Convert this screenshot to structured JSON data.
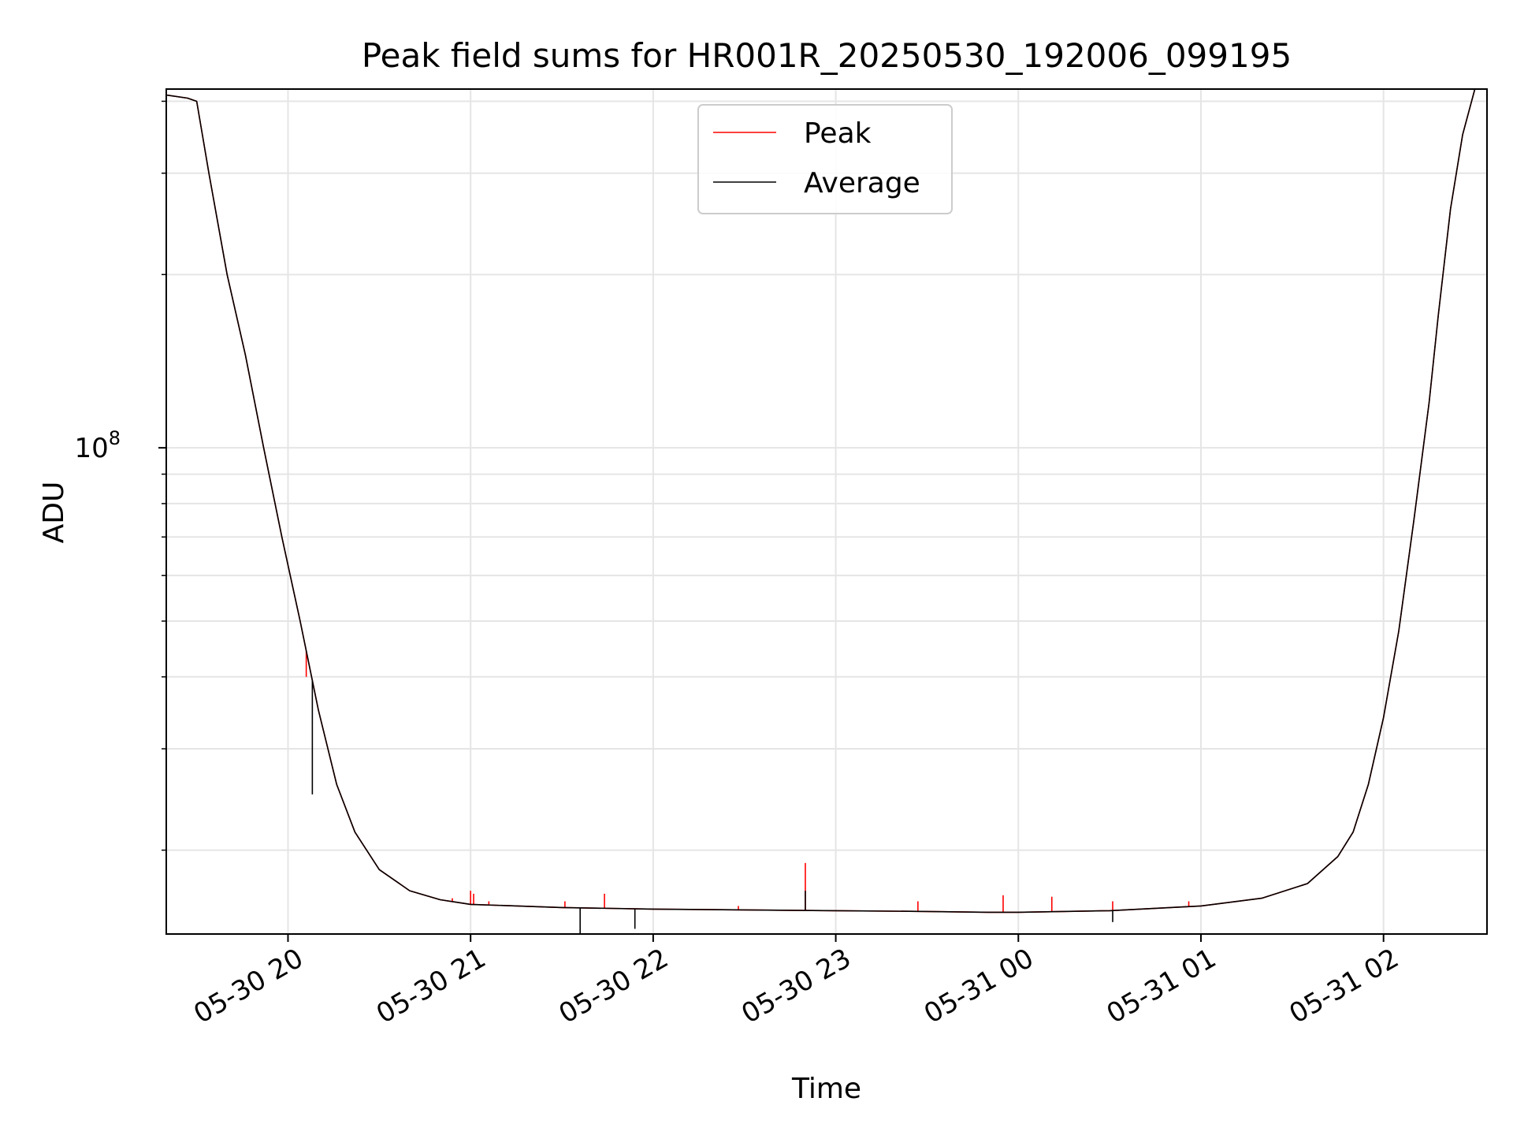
{
  "chart_data": {
    "type": "line",
    "title": "Peak field sums for HR001R_20250530_192006_099195",
    "xlabel": "Time",
    "ylabel": "ADU",
    "yscale": "log",
    "ylim": [
      14300000,
      420000000
    ],
    "xlim": [
      "2025-05-30 19:20",
      "2025-05-31 02:34"
    ],
    "x_ticks": [
      "05-30 20",
      "05-30 21",
      "05-30 22",
      "05-30 23",
      "05-31 00",
      "05-31 01",
      "05-31 02"
    ],
    "y_ticks": [
      {
        "value": 100000000,
        "base": "10",
        "exponent": "8"
      }
    ],
    "y_minor_ticks": [
      20000000,
      30000000,
      40000000,
      50000000,
      60000000,
      70000000,
      80000000,
      90000000,
      200000000,
      300000000,
      400000000
    ],
    "grid": true,
    "legend": "upper center",
    "colors": {
      "Peak": "#ff0000",
      "Average": "#000000"
    },
    "series": [
      {
        "name": "Peak",
        "x": [
          "2025-05-30 19:20",
          "2025-05-30 19:27",
          "2025-05-30 19:30",
          "2025-05-30 19:34",
          "2025-05-30 19:40",
          "2025-05-30 19:46",
          "2025-05-30 19:52",
          "2025-05-30 19:58",
          "2025-05-30 20:04",
          "2025-05-30 20:10",
          "2025-05-30 20:16",
          "2025-05-30 20:22",
          "2025-05-30 20:30",
          "2025-05-30 20:40",
          "2025-05-30 20:50",
          "2025-05-30 21:00",
          "2025-05-30 21:30",
          "2025-05-30 22:00",
          "2025-05-30 22:30",
          "2025-05-30 23:00",
          "2025-05-30 23:30",
          "2025-05-30 23:50",
          "2025-05-31 00:00",
          "2025-05-31 00:30",
          "2025-05-31 01:00",
          "2025-05-31 01:20",
          "2025-05-31 01:35",
          "2025-05-31 01:45",
          "2025-05-31 01:50",
          "2025-05-31 01:55",
          "2025-05-31 02:00",
          "2025-05-31 02:05",
          "2025-05-31 02:10",
          "2025-05-31 02:15",
          "2025-05-31 02:18",
          "2025-05-31 02:22",
          "2025-05-31 02:26",
          "2025-05-31 02:30"
        ],
        "y": [
          410000000,
          405000000,
          400000000,
          300000000,
          200000000,
          145000000,
          100000000,
          70000000,
          50000000,
          35000000,
          26000000,
          21500000,
          18500000,
          17000000,
          16400000,
          16100000,
          15900000,
          15800000,
          15750000,
          15700000,
          15650000,
          15600000,
          15600000,
          15700000,
          16000000,
          16500000,
          17500000,
          19500000,
          21500000,
          26000000,
          34000000,
          48000000,
          75000000,
          120000000,
          170000000,
          260000000,
          350000000,
          420000000
        ],
        "spikes": [
          {
            "x": "2025-05-30 20:06",
            "y": 40000000
          },
          {
            "x": "2025-05-30 20:54",
            "y": 16500000
          },
          {
            "x": "2025-05-30 21:00",
            "y": 17000000
          },
          {
            "x": "2025-05-30 21:01",
            "y": 16800000
          },
          {
            "x": "2025-05-30 21:06",
            "y": 16300000
          },
          {
            "x": "2025-05-30 21:31",
            "y": 16300000
          },
          {
            "x": "2025-05-30 21:44",
            "y": 16800000
          },
          {
            "x": "2025-05-30 22:28",
            "y": 16000000
          },
          {
            "x": "2025-05-30 22:50",
            "y": 19000000
          },
          {
            "x": "2025-05-30 23:27",
            "y": 16300000
          },
          {
            "x": "2025-05-30 23:55",
            "y": 16700000
          },
          {
            "x": "2025-05-31 00:11",
            "y": 16600000
          },
          {
            "x": "2025-05-31 00:31",
            "y": 16300000
          },
          {
            "x": "2025-05-31 00:56",
            "y": 16300000
          },
          {
            "x": "2025-05-31 01:35",
            "y": 17500000
          }
        ]
      },
      {
        "name": "Average",
        "x": [
          "2025-05-30 19:20",
          "2025-05-30 19:27",
          "2025-05-30 19:30",
          "2025-05-30 19:34",
          "2025-05-30 19:40",
          "2025-05-30 19:46",
          "2025-05-30 19:52",
          "2025-05-30 19:58",
          "2025-05-30 20:04",
          "2025-05-30 20:10",
          "2025-05-30 20:16",
          "2025-05-30 20:22",
          "2025-05-30 20:30",
          "2025-05-30 20:40",
          "2025-05-30 20:50",
          "2025-05-30 21:00",
          "2025-05-30 21:30",
          "2025-05-30 22:00",
          "2025-05-30 22:30",
          "2025-05-30 23:00",
          "2025-05-30 23:30",
          "2025-05-30 23:50",
          "2025-05-31 00:00",
          "2025-05-31 00:30",
          "2025-05-31 01:00",
          "2025-05-31 01:20",
          "2025-05-31 01:35",
          "2025-05-31 01:45",
          "2025-05-31 01:50",
          "2025-05-31 01:55",
          "2025-05-31 02:00",
          "2025-05-31 02:05",
          "2025-05-31 02:10",
          "2025-05-31 02:15",
          "2025-05-31 02:18",
          "2025-05-31 02:22",
          "2025-05-31 02:26",
          "2025-05-31 02:30"
        ],
        "y": [
          410000000,
          405000000,
          400000000,
          300000000,
          200000000,
          145000000,
          100000000,
          70000000,
          50000000,
          35000000,
          26000000,
          21500000,
          18500000,
          17000000,
          16400000,
          16100000,
          15900000,
          15800000,
          15750000,
          15700000,
          15650000,
          15600000,
          15600000,
          15700000,
          16000000,
          16500000,
          17500000,
          19500000,
          21500000,
          26000000,
          34000000,
          48000000,
          75000000,
          120000000,
          170000000,
          260000000,
          350000000,
          420000000
        ],
        "spikes": [
          {
            "x": "2025-05-30 22:50",
            "y": 17000000
          }
        ],
        "dips": [
          {
            "x": "2025-05-30 21:36",
            "y": 14300000
          },
          {
            "x": "2025-05-30 21:54",
            "y": 14600000
          },
          {
            "x": "2025-05-30 20:08",
            "y": 25000000
          },
          {
            "x": "2025-05-31 00:31",
            "y": 15000000
          }
        ]
      }
    ]
  }
}
